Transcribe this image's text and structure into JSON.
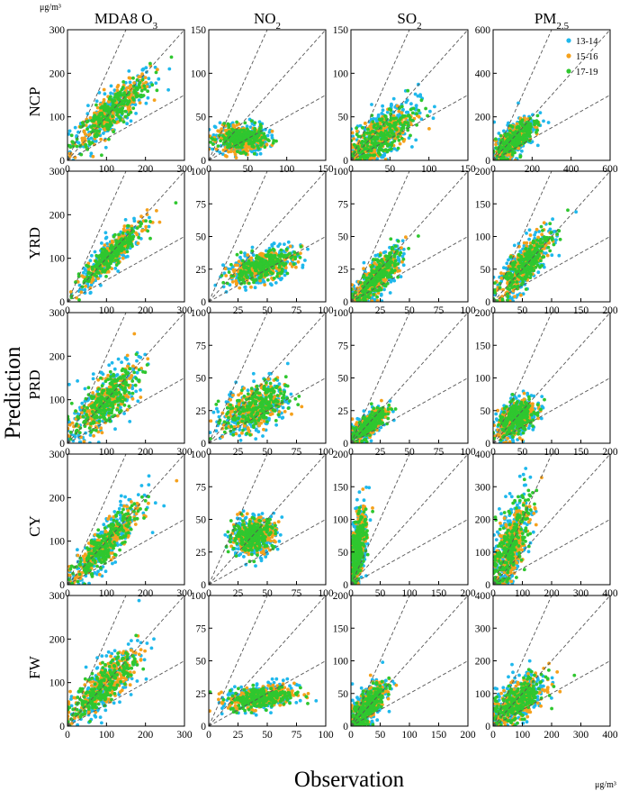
{
  "figure": {
    "unit_top": "μg/m³",
    "unit_bottom": "μg/m³",
    "xlabel": "Observation",
    "ylabel": "Prediction"
  },
  "colors": {
    "13-14": "#1fb8ec",
    "15-16": "#f5a11c",
    "17-19": "#2fc72f",
    "ref_lines": "#555555"
  },
  "chart_data": {
    "type": "scatter",
    "columns": [
      {
        "id": "o3",
        "base": "MDA8 O",
        "sub": "3"
      },
      {
        "id": "no2",
        "base": "NO",
        "sub": "2"
      },
      {
        "id": "so2",
        "base": "SO",
        "sub": "2"
      },
      {
        "id": "pm25",
        "base": "PM",
        "sub": "2.5"
      }
    ],
    "rows": [
      "NCP",
      "YRD",
      "PRD",
      "CY",
      "FW"
    ],
    "legend": [
      {
        "label": "13-14",
        "color": "#1fb8ec"
      },
      {
        "label": "15-16",
        "color": "#f5a11c"
      },
      {
        "label": "17-19",
        "color": "#2fc72f"
      }
    ],
    "reference_lines": [
      "y = 2x",
      "y = x",
      "y = 0.5x"
    ],
    "panels": [
      [
        {
          "max": 300,
          "ticks": [
            0,
            100,
            200,
            300
          ]
        },
        {
          "max": 150,
          "ticks": [
            0,
            50,
            100,
            150
          ]
        },
        {
          "max": 150,
          "ticks": [
            0,
            50,
            100,
            150
          ]
        },
        {
          "max": 600,
          "ticks": [
            0,
            200,
            400,
            600
          ]
        }
      ],
      [
        {
          "max": 300,
          "ticks": [
            0,
            100,
            200,
            300
          ]
        },
        {
          "max": 100,
          "ticks": [
            0,
            25,
            50,
            75,
            100
          ]
        },
        {
          "max": 100,
          "ticks": [
            0,
            25,
            50,
            75,
            100
          ]
        },
        {
          "max": 200,
          "ticks": [
            0,
            50,
            100,
            150,
            200
          ]
        }
      ],
      [
        {
          "max": 300,
          "ticks": [
            0,
            100,
            200,
            300
          ]
        },
        {
          "max": 100,
          "ticks": [
            0,
            25,
            50,
            75,
            100
          ]
        },
        {
          "max": 100,
          "ticks": [
            0,
            25,
            50,
            75,
            100
          ]
        },
        {
          "max": 200,
          "ticks": [
            0,
            50,
            100,
            150,
            200
          ]
        }
      ],
      [
        {
          "max": 300,
          "ticks": [
            0,
            100,
            200,
            300
          ]
        },
        {
          "max": 100,
          "ticks": [
            0,
            25,
            50,
            75,
            100
          ]
        },
        {
          "max": 200,
          "ticks": [
            0,
            50,
            100,
            150,
            200
          ]
        },
        {
          "max": 400,
          "ticks": [
            0,
            100,
            200,
            300,
            400
          ]
        }
      ],
      [
        {
          "max": 300,
          "ticks": [
            0,
            100,
            200,
            300
          ]
        },
        {
          "max": 100,
          "ticks": [
            0,
            25,
            50,
            75,
            100
          ]
        },
        {
          "max": 200,
          "ticks": [
            0,
            50,
            100,
            150,
            200
          ]
        },
        {
          "max": 400,
          "ticks": [
            0,
            100,
            200,
            300,
            400
          ]
        }
      ]
    ],
    "point_clouds": [
      [
        {
          "cx": 115,
          "cy": 112,
          "sx": 48,
          "sy": 38,
          "slope": 0.72,
          "spread": 20
        },
        {
          "cx": 42,
          "cy": 25,
          "sx": 15,
          "sy": 8,
          "slope": 0.0,
          "spread": 7
        },
        {
          "cx": 38,
          "cy": 28,
          "sx": 22,
          "sy": 18,
          "slope": 0.55,
          "spread": 12
        },
        {
          "cx": 110,
          "cy": 95,
          "sx": 48,
          "sy": 40,
          "slope": 0.7,
          "spread": 32
        }
      ],
      [
        {
          "cx": 115,
          "cy": 110,
          "sx": 38,
          "sy": 32,
          "slope": 0.8,
          "spread": 14
        },
        {
          "cx": 45,
          "cy": 27,
          "sx": 14,
          "sy": 6,
          "slope": 0.25,
          "spread": 5
        },
        {
          "cx": 22,
          "cy": 18,
          "sx": 10,
          "sy": 9,
          "slope": 0.85,
          "spread": 6
        },
        {
          "cx": 55,
          "cy": 58,
          "sx": 22,
          "sy": 24,
          "slope": 0.9,
          "spread": 14
        }
      ],
      [
        {
          "cx": 95,
          "cy": 95,
          "sx": 40,
          "sy": 38,
          "slope": 0.7,
          "spread": 24
        },
        {
          "cx": 40,
          "cy": 27,
          "sx": 13,
          "sy": 8,
          "slope": 0.3,
          "spread": 8
        },
        {
          "cx": 15,
          "cy": 14,
          "sx": 7,
          "sy": 6,
          "slope": 0.7,
          "spread": 4
        },
        {
          "cx": 40,
          "cy": 38,
          "sx": 16,
          "sy": 13,
          "slope": 0.45,
          "spread": 12
        }
      ],
      [
        {
          "cx": 100,
          "cy": 95,
          "sx": 42,
          "sy": 40,
          "slope": 0.9,
          "spread": 20
        },
        {
          "cx": 38,
          "cy": 38,
          "sx": 9,
          "sy": 8,
          "slope": 0.1,
          "spread": 6
        },
        {
          "cx": 12,
          "cy": 55,
          "sx": 7,
          "sy": 40,
          "slope": 2.2,
          "spread": 22
        },
        {
          "cx": 60,
          "cy": 120,
          "sx": 32,
          "sy": 60,
          "slope": 1.4,
          "spread": 50
        }
      ],
      [
        {
          "cx": 95,
          "cy": 95,
          "sx": 42,
          "sy": 35,
          "slope": 0.75,
          "spread": 22
        },
        {
          "cx": 45,
          "cy": 22,
          "sx": 14,
          "sy": 5,
          "slope": 0.1,
          "spread": 4
        },
        {
          "cx": 28,
          "cy": 30,
          "sx": 15,
          "sy": 18,
          "slope": 0.9,
          "spread": 12
        },
        {
          "cx": 85,
          "cy": 75,
          "sx": 45,
          "sy": 35,
          "slope": 0.55,
          "spread": 28
        }
      ]
    ]
  }
}
